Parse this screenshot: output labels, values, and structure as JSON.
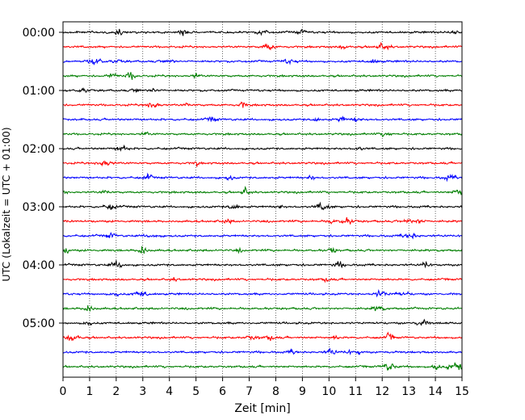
{
  "chart_data": {
    "type": "line",
    "title": "",
    "xlabel": "Zeit  [min]",
    "ylabel": "UTC (Lokalzeit = UTC + 01:00)",
    "xlim": [
      0,
      15
    ],
    "x_ticks": [
      "0",
      "1",
      "2",
      "3",
      "4",
      "5",
      "6",
      "7",
      "8",
      "9",
      "10",
      "11",
      "12",
      "13",
      "14",
      "15"
    ],
    "y_tick_labels": [
      "00:00",
      "01:00",
      "02:00",
      "03:00",
      "04:00",
      "05:00"
    ],
    "grid": "vertical dotted at each minute",
    "trace_interval_minutes": 15,
    "trace_colors": [
      "#000000",
      "#ff0000",
      "#0000ff",
      "#007f00"
    ],
    "traces": [
      {
        "start": "00:00",
        "color": "#000000"
      },
      {
        "start": "00:15",
        "color": "#ff0000"
      },
      {
        "start": "00:30",
        "color": "#0000ff"
      },
      {
        "start": "00:45",
        "color": "#007f00"
      },
      {
        "start": "01:00",
        "color": "#000000"
      },
      {
        "start": "01:15",
        "color": "#ff0000"
      },
      {
        "start": "01:30",
        "color": "#0000ff"
      },
      {
        "start": "01:45",
        "color": "#007f00"
      },
      {
        "start": "02:00",
        "color": "#000000"
      },
      {
        "start": "02:15",
        "color": "#ff0000"
      },
      {
        "start": "02:30",
        "color": "#0000ff"
      },
      {
        "start": "02:45",
        "color": "#007f00"
      },
      {
        "start": "03:00",
        "color": "#000000"
      },
      {
        "start": "03:15",
        "color": "#ff0000"
      },
      {
        "start": "03:30",
        "color": "#0000ff"
      },
      {
        "start": "03:45",
        "color": "#007f00"
      },
      {
        "start": "04:00",
        "color": "#000000"
      },
      {
        "start": "04:15",
        "color": "#ff0000"
      },
      {
        "start": "04:30",
        "color": "#0000ff"
      },
      {
        "start": "04:45",
        "color": "#007f00"
      },
      {
        "start": "05:00",
        "color": "#000000"
      },
      {
        "start": "05:15",
        "color": "#ff0000"
      },
      {
        "start": "05:30",
        "color": "#0000ff"
      },
      {
        "start": "05:45",
        "color": "#007f00"
      }
    ]
  }
}
